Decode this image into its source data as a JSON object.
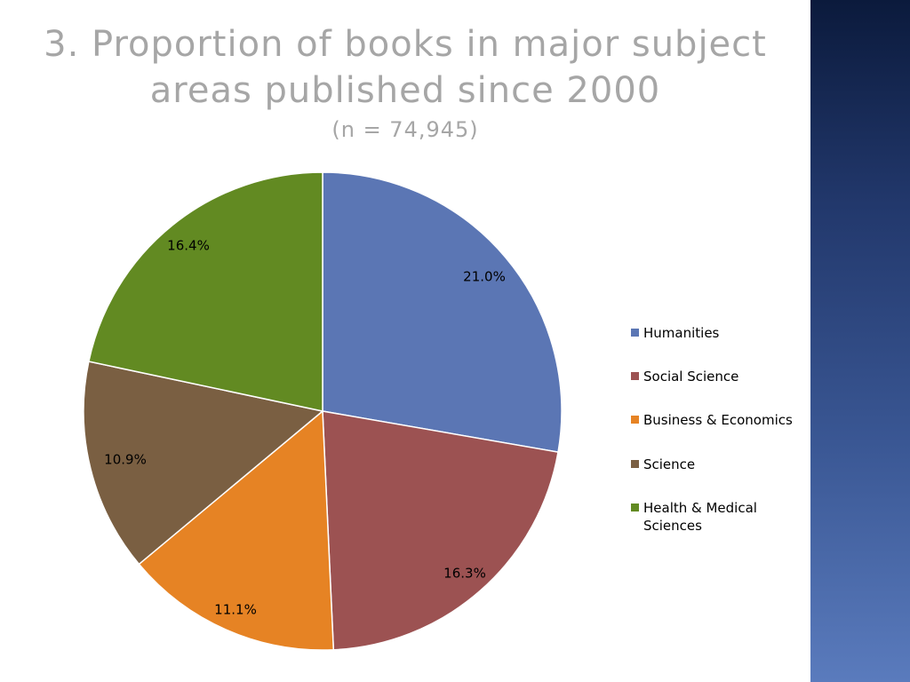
{
  "title": {
    "line1": "3. Proportion of books in major subject",
    "line2": "areas published since 2000",
    "subtitle": "(n = 74,945)"
  },
  "chart_data": {
    "type": "pie",
    "slices": [
      {
        "label": "Humanities",
        "value": 21.0,
        "display": "21.0%",
        "color": "#5b76b4"
      },
      {
        "label": "Social Science",
        "value": 16.3,
        "display": "16.3%",
        "color": "#9c5252"
      },
      {
        "label": "Business & Economics",
        "value": 11.1,
        "display": "11.1%",
        "color": "#e68324"
      },
      {
        "label": "Science",
        "value": 10.9,
        "display": "10.9%",
        "color": "#7a5f42"
      },
      {
        "label": "Health & Medical Sciences",
        "value": 16.4,
        "display": "16.4%",
        "color": "#628a22"
      }
    ],
    "legend": {
      "position": "right"
    }
  }
}
